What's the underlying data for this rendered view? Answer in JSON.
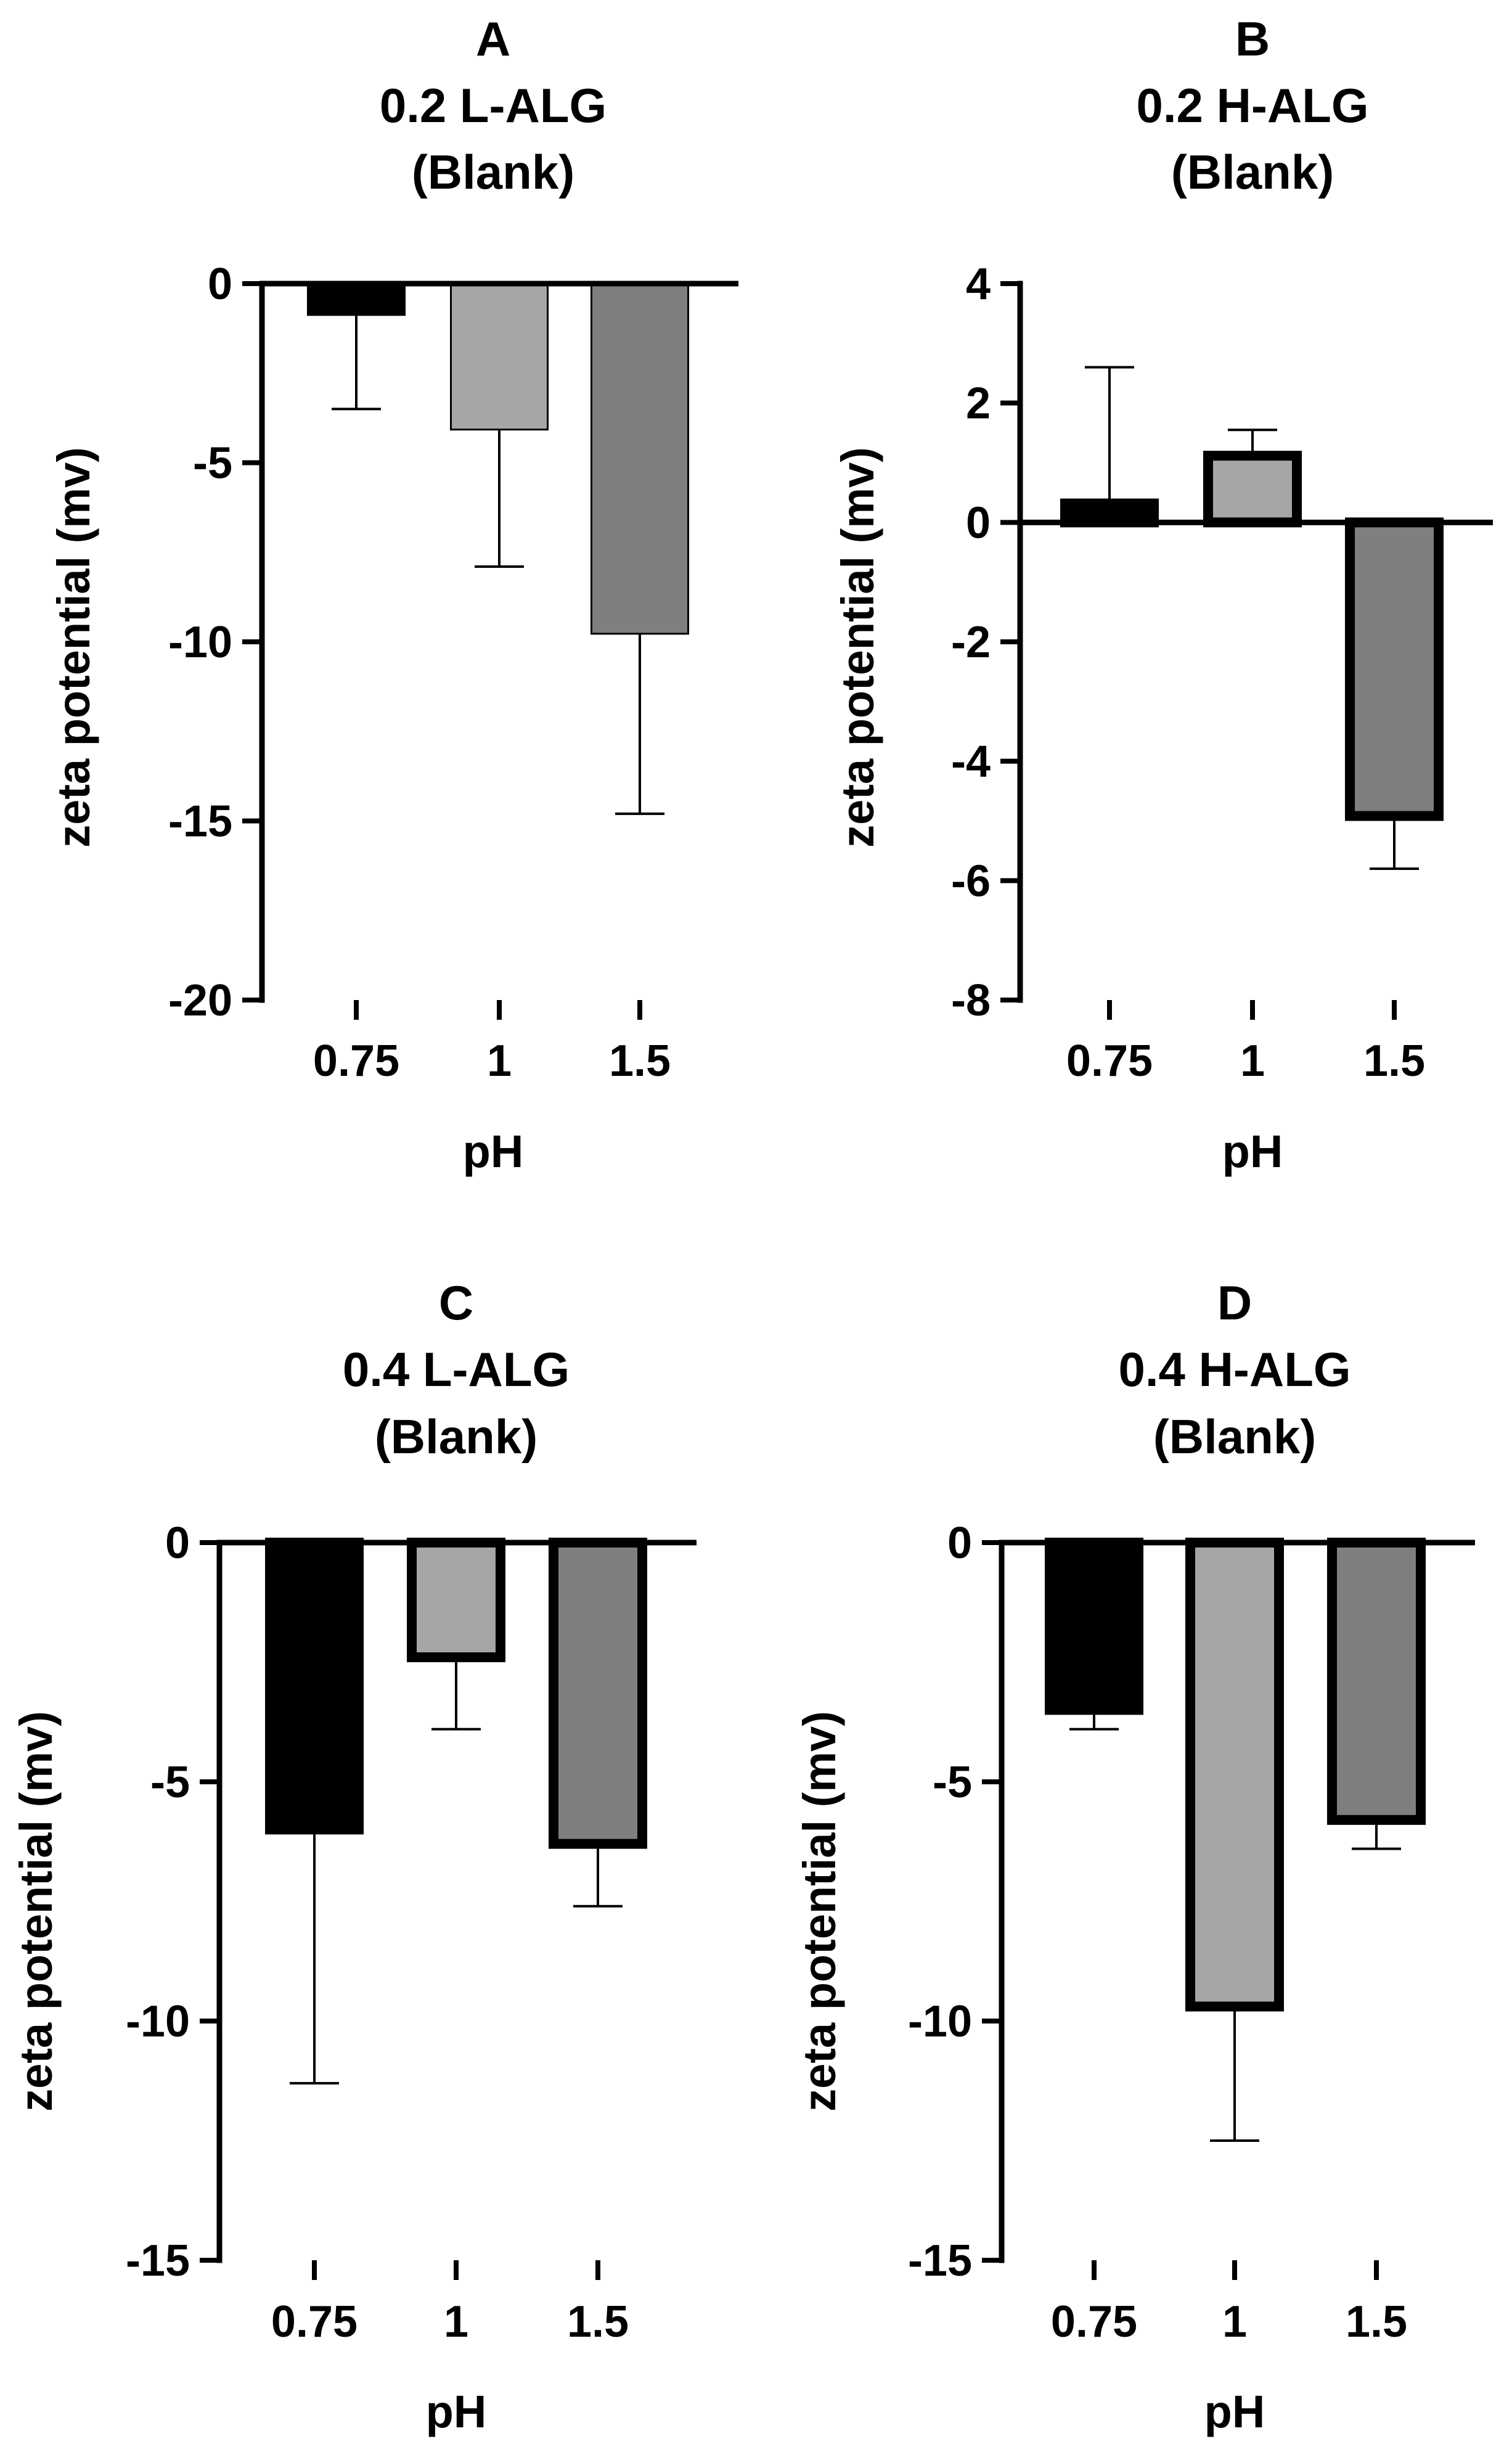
{
  "colors": {
    "bar_0_75": "#000000",
    "bar_1": "#a6a6a8",
    "bar_1_5": "#7f7f7f",
    "axis": "#000000",
    "error_bar": "#000000"
  },
  "chart_data": [
    {
      "id": "A",
      "type": "bar",
      "panel_letter": "A",
      "title": "0.2 L-ALG",
      "subtitle": "(Blank)",
      "xlabel": "pH",
      "ylabel": "zeta potential (mv)",
      "categories": [
        "0.75",
        "1",
        "1.5"
      ],
      "values": [
        -0.9,
        -4.1,
        -9.8
      ],
      "errors": [
        2.6,
        3.8,
        5.0
      ],
      "ylim": [
        -20,
        0
      ],
      "yticks": [
        0,
        -5,
        -10,
        -15,
        -20
      ],
      "ytick_labels": [
        "0",
        "-5",
        "-10",
        "-15",
        "-20"
      ],
      "bar_outline": "thin"
    },
    {
      "id": "B",
      "type": "bar",
      "panel_letter": "B",
      "title": "0.2 H-ALG",
      "subtitle": "(Blank)",
      "xlabel": "pH",
      "ylabel": "zeta potential (mv)",
      "categories": [
        "0.75",
        "1",
        "1.5"
      ],
      "values": [
        0.4,
        1.2,
        -5.0
      ],
      "errors": [
        2.2,
        0.35,
        0.8
      ],
      "ylim": [
        -8,
        4
      ],
      "yticks": [
        4,
        2,
        0,
        -2,
        -4,
        -6,
        -8
      ],
      "ytick_labels": [
        "4",
        "2",
        "0",
        "-2",
        "-4",
        "-6",
        "-8"
      ],
      "bar_outline": "thick"
    },
    {
      "id": "C",
      "type": "bar",
      "panel_letter": "C",
      "title": "0.4 L-ALG",
      "subtitle": "(Blank)",
      "xlabel": "pH",
      "ylabel": "zeta potential (mv)",
      "categories": [
        "0.75",
        "1",
        "1.5"
      ],
      "values": [
        -6.1,
        -2.5,
        -6.4
      ],
      "errors": [
        5.2,
        1.4,
        1.2
      ],
      "ylim": [
        -15,
        0
      ],
      "yticks": [
        0,
        -5,
        -10,
        -15
      ],
      "ytick_labels": [
        "0",
        "-5",
        "-10",
        "-15"
      ],
      "bar_outline": "thick"
    },
    {
      "id": "D",
      "type": "bar",
      "panel_letter": "D",
      "title": "0.4 H-ALG",
      "subtitle": "(Blank)",
      "xlabel": "pH",
      "ylabel": "zeta potential (mv)",
      "categories": [
        "0.75",
        "1",
        "1.5"
      ],
      "values": [
        -3.6,
        -9.8,
        -5.9
      ],
      "errors": [
        0.3,
        2.7,
        0.5
      ],
      "ylim": [
        -15,
        0
      ],
      "yticks": [
        0,
        -5,
        -10,
        -15
      ],
      "ytick_labels": [
        "0",
        "-5",
        "-10",
        "-15"
      ],
      "bar_outline": "thick"
    }
  ]
}
